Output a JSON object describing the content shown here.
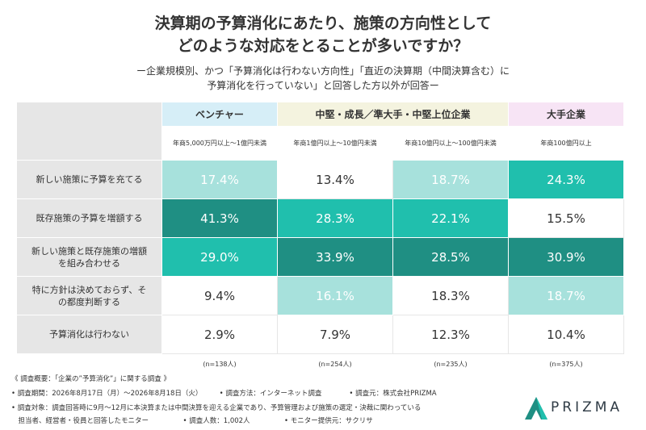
{
  "header": {
    "title_line1": "決算期の予算消化にあたり、施策の方向性として",
    "title_line2": "どのような対応をとることが多いですか？",
    "subtitle_line1": "ー企業規模別、かつ「予算消化は行わない方向性」「直近の決算期（中間決算含む）に",
    "subtitle_line2": "予算消化を行っていない」と回答した方以外が回答ー"
  },
  "chart_data": {
    "type": "table",
    "groups": [
      {
        "label": "ベンチャー",
        "span": 1,
        "color": "#d6eef7"
      },
      {
        "label": "中堅・成長／準大手・中堅上位企業",
        "span": 2,
        "color": "#f4f3df"
      },
      {
        "label": "大手企業",
        "span": 1,
        "color": "#f7e4f5"
      }
    ],
    "columns": [
      "年商5,000万円以上～1億円未満",
      "年商1億円以上～10億円未満",
      "年商10億円以上～100億円未満",
      "年商100億円以上"
    ],
    "rows": [
      {
        "label": "新しい施策に予算を充てる",
        "values": [
          "17.4%",
          "13.4%",
          "18.7%",
          "24.3%"
        ],
        "level": [
          "light",
          "none",
          "light",
          "mid"
        ]
      },
      {
        "label": "既存施策の予算を増額する",
        "values": [
          "41.3%",
          "28.3%",
          "22.1%",
          "15.5%"
        ],
        "level": [
          "dark",
          "mid",
          "mid",
          "none"
        ]
      },
      {
        "label": "新しい施策と既存施策の増額を組み合わせる",
        "values": [
          "29.0%",
          "33.9%",
          "28.5%",
          "30.9%"
        ],
        "level": [
          "mid",
          "dark",
          "dark",
          "dark"
        ]
      },
      {
        "label": "特に方針は決めておらず、その都度判断する",
        "values": [
          "9.4%",
          "16.1%",
          "18.3%",
          "18.7%"
        ],
        "level": [
          "none",
          "light",
          "none",
          "light"
        ]
      },
      {
        "label": "予算消化は行わない",
        "values": [
          "2.9%",
          "7.9%",
          "12.3%",
          "10.4%"
        ],
        "level": [
          "none",
          "none",
          "none",
          "none"
        ]
      }
    ],
    "n": [
      "(n=138人)",
      "(n=254人)",
      "(n=235人)",
      "(n=375人)"
    ],
    "colors": {
      "dark": "#1f8f83",
      "mid": "#20bfad",
      "light": "#a7e1dc",
      "none": "#ffffff"
    }
  },
  "footer": {
    "line1": "《 調査概要：「企業の”予算消化”」に関する調査 》",
    "line2": "• 調査期間：2026年8月17日（月）～2026年8月18日（火）　　　• 調査方法：インターネット調査　　　　• 調査元：株式会社PRIZMA",
    "line3": "• 調査対象：調査回答時に9月～12月に本決算または中間決算を迎える企業であり、予算管理および施策の選定・決裁に関わっている",
    "line4": "　担当者、経営者・役員と回答したモニター　　　　　• 調査人数：1,002人　　　　　• モニター提供元：サクリサ"
  },
  "logo": {
    "text": "PRIZMA"
  }
}
